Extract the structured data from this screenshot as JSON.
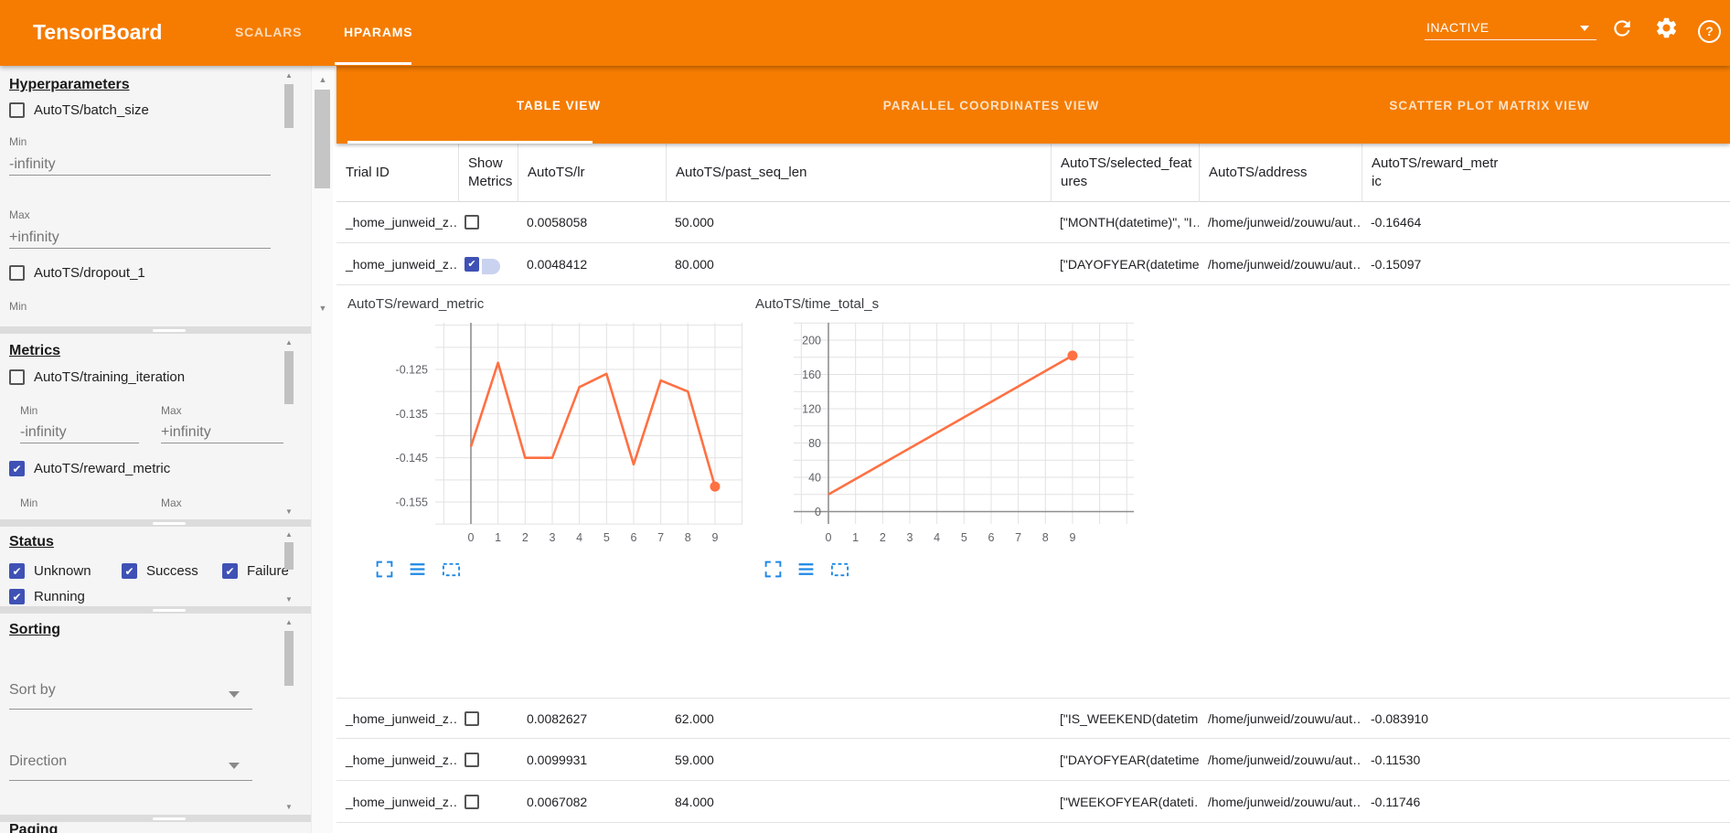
{
  "header": {
    "title": "TensorBoard",
    "tabs": [
      {
        "label": "SCALARS",
        "active": false
      },
      {
        "label": "HPARAMS",
        "active": true
      }
    ],
    "run_status": "INACTIVE",
    "help_glyph": "?"
  },
  "sidebar": {
    "hyperparameters": {
      "title": "Hyperparameters",
      "batch_size": {
        "label": "AutoTS/batch_size",
        "checked": false
      },
      "batch_min_label": "Min",
      "batch_min_value": "-infinity",
      "batch_max_label": "Max",
      "batch_max_value": "+infinity",
      "dropout": {
        "label": "AutoTS/dropout_1",
        "checked": false
      },
      "dropout_min_label": "Min"
    },
    "metrics": {
      "title": "Metrics",
      "training_iteration": {
        "label": "AutoTS/training_iteration",
        "checked": false
      },
      "min_label": "Min",
      "min_value": "-infinity",
      "max_label": "Max",
      "max_value": "+infinity",
      "reward_metric": {
        "label": "AutoTS/reward_metric",
        "checked": true
      },
      "min2_label": "Min",
      "max2_label": "Max"
    },
    "status": {
      "title": "Status",
      "options": [
        {
          "label": "Unknown",
          "checked": true
        },
        {
          "label": "Success",
          "checked": true
        },
        {
          "label": "Failure",
          "checked": true
        },
        {
          "label": "Running",
          "checked": true
        }
      ]
    },
    "sorting": {
      "title": "Sorting",
      "sort_by_placeholder": "Sort by",
      "direction_placeholder": "Direction"
    },
    "paging": {
      "title": "Paging"
    }
  },
  "main": {
    "tabs": [
      {
        "label": "TABLE VIEW",
        "active": true
      },
      {
        "label": "PARALLEL COORDINATES VIEW",
        "active": false
      },
      {
        "label": "SCATTER PLOT MATRIX VIEW",
        "active": false
      }
    ],
    "table": {
      "columns": [
        "Trial ID",
        "Show Metrics",
        "AutoTS/lr",
        "AutoTS/past_seq_len",
        "AutoTS/selected_features",
        "AutoTS/address",
        "AutoTS/reward_metric"
      ],
      "rows": [
        {
          "trial_id": "_home_junweid_z…",
          "show_metrics": false,
          "lr": "0.0058058",
          "past_seq_len": "50.000",
          "selected_features": "[\"MONTH(datetime)\", \"I…",
          "address": "/home/junweid/zouwu/aut…",
          "reward_metric": "-0.16464"
        },
        {
          "trial_id": "_home_junweid_z…",
          "show_metrics": true,
          "lr": "0.0048412",
          "past_seq_len": "80.000",
          "selected_features": "[\"DAYOFYEAR(datetime…",
          "address": "/home/junweid/zouwu/aut…",
          "reward_metric": "-0.15097"
        },
        {
          "trial_id": "_home_junweid_z…",
          "show_metrics": false,
          "lr": "0.0082627",
          "past_seq_len": "62.000",
          "selected_features": "[\"IS_WEEKEND(datetim…",
          "address": "/home/junweid/zouwu/aut…",
          "reward_metric": "-0.083910"
        },
        {
          "trial_id": "_home_junweid_z…",
          "show_metrics": false,
          "lr": "0.0099931",
          "past_seq_len": "59.000",
          "selected_features": "[\"DAYOFYEAR(datetime…",
          "address": "/home/junweid/zouwu/aut…",
          "reward_metric": "-0.11530"
        },
        {
          "trial_id": "_home_junweid_z…",
          "show_metrics": false,
          "lr": "0.0067082",
          "past_seq_len": "84.000",
          "selected_features": "[\"WEEKOFYEAR(dateti…",
          "address": "/home/junweid/zouwu/aut…",
          "reward_metric": "-0.11746"
        }
      ]
    }
  },
  "chart_data": [
    {
      "type": "line",
      "title": "AutoTS/reward_metric",
      "x": [
        0,
        1,
        2,
        3,
        4,
        5,
        6,
        7,
        8,
        9
      ],
      "values": [
        -0.1425,
        -0.1235,
        -0.145,
        -0.145,
        -0.129,
        -0.126,
        -0.1465,
        -0.1275,
        -0.13,
        -0.1515
      ],
      "yticks": [
        -0.125,
        -0.135,
        -0.145,
        -0.155
      ],
      "ytick_labels": [
        "-0.125",
        "-0.135",
        "-0.145",
        "-0.155"
      ],
      "ylim": [
        -0.158,
        -0.118
      ],
      "grid": true,
      "color": "#ff7043",
      "end_dot": true
    },
    {
      "type": "line",
      "title": "AutoTS/time_total_s",
      "x": [
        0,
        1,
        2,
        3,
        4,
        5,
        6,
        7,
        8,
        9
      ],
      "values": [
        20,
        38,
        56,
        74,
        92,
        110,
        128,
        146,
        164,
        182
      ],
      "yticks": [
        200,
        160,
        120,
        80,
        40,
        0
      ],
      "ytick_labels": [
        "200",
        "160",
        "120",
        "80",
        "40",
        "0"
      ],
      "ylim": [
        -15,
        215
      ],
      "grid": true,
      "color": "#ff7043",
      "end_dot": true
    }
  ]
}
